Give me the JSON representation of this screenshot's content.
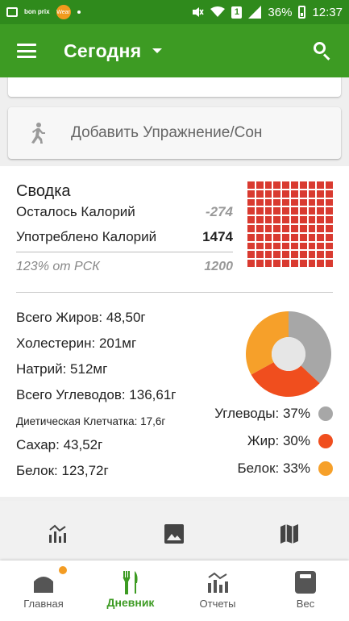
{
  "status_bar": {
    "left_icons": [
      "image-notification-icon",
      "bonprix-app-icon",
      "wear-app-icon",
      "dot-icon"
    ],
    "bonprix_label": "bon prix",
    "wear_label": "Wear",
    "sim_label": "1",
    "battery": "36%",
    "time": "12:37"
  },
  "app_bar": {
    "title": "Сегодня"
  },
  "exercise": {
    "label": "Добавить Упражнение/Сон"
  },
  "summary": {
    "title": "Сводка",
    "remaining_label": "Осталось Калорий",
    "remaining_value": "-274",
    "consumed_label": "Употреблено Калорий",
    "consumed_value": "1474",
    "pct_label": "123% от РСК",
    "pct_value": "1200",
    "grid_fill_fraction": 1.0
  },
  "nutrients": {
    "fat": "Всего Жиров: 48,50г",
    "cholesterol": "Холестерин: 201мг",
    "sodium": "Натрий: 512мг",
    "carbs": "Всего Углеводов: 136,61г",
    "fiber": "Диетическая Клетчатка: 17,6г",
    "sugar": "Сахар: 43,52г",
    "protein": "Белок: 123,72г"
  },
  "macros": {
    "carbs_label": "Углеводы: 37%",
    "fat_label": "Жир: 30%",
    "protein_label": "Белок: 33%",
    "carbs_pct": 37,
    "fat_pct": 30,
    "protein_pct": 33,
    "carbs_color": "#a7a7a7",
    "fat_color": "#f04e1e",
    "protein_color": "#f6a02a"
  },
  "bottom_nav": {
    "home": "Главная",
    "diary": "Дневник",
    "reports": "Отчеты",
    "weight": "Вес",
    "accent": "#3d9b23",
    "badge_color": "#f39c23"
  }
}
